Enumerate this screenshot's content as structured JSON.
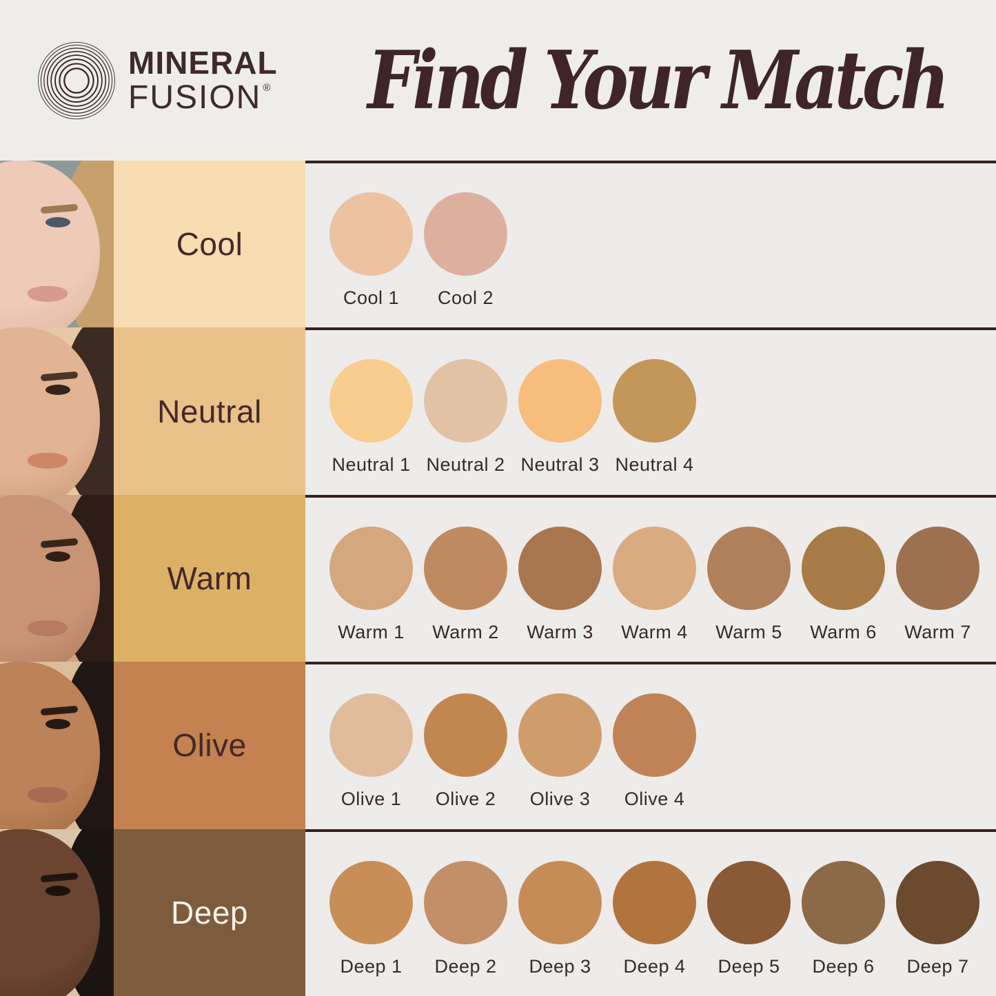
{
  "header": {
    "brand": {
      "line1": "MINERAL",
      "line2": "FUSION",
      "registered": "®"
    },
    "title": "Find Your Match"
  },
  "colors": {
    "page_bg": "#efedeb",
    "panel_bg": "#edecea",
    "divider": "#35221b",
    "title_text": "#3f2528",
    "brand_text": "#3e2a28",
    "swatch_label_text": "#372a24"
  },
  "rows": [
    {
      "id": "cool",
      "label": "Cool",
      "label_bg": "#f7ddb1",
      "label_color": "#43282a",
      "face": {
        "bg": "#8f989b",
        "skin1": "#eecab8",
        "skin2": "#d8a795",
        "hair": "#c7a06b",
        "brow": "#9b7b55",
        "eye": "#4a5a66",
        "lips": "#d89a8e"
      },
      "swatches": [
        {
          "name": "Cool 1",
          "color": "#ecc2a0"
        },
        {
          "name": "Cool 2",
          "color": "#dcb09c"
        }
      ]
    },
    {
      "id": "neutral",
      "label": "Neutral",
      "label_bg": "#eac189",
      "label_color": "#43282a",
      "face": {
        "bg": "#e5c9a2",
        "skin1": "#e2b394",
        "skin2": "#c08a6c",
        "hair": "#3b2b22",
        "brow": "#4a3527",
        "eye": "#33241c",
        "lips": "#cf8668"
      },
      "swatches": [
        {
          "name": "Neutral 1",
          "color": "#f8cd8d"
        },
        {
          "name": "Neutral 2",
          "color": "#e2c2a4"
        },
        {
          "name": "Neutral 3",
          "color": "#f6bd7c"
        },
        {
          "name": "Neutral 4",
          "color": "#c39659"
        }
      ]
    },
    {
      "id": "warm",
      "label": "Warm",
      "label_bg": "#dcb166",
      "label_color": "#43282a",
      "face": {
        "bg": "#d2a487",
        "skin1": "#c99475",
        "skin2": "#a1704f",
        "hair": "#2c1e16",
        "brow": "#3a271c",
        "eye": "#2e1f18",
        "lips": "#b97a64"
      },
      "swatches": [
        {
          "name": "Warm 1",
          "color": "#d4a77e"
        },
        {
          "name": "Warm 2",
          "color": "#c08a60"
        },
        {
          "name": "Warm 3",
          "color": "#a87750"
        },
        {
          "name": "Warm 4",
          "color": "#d8ab80"
        },
        {
          "name": "Warm 5",
          "color": "#b0805a"
        },
        {
          "name": "Warm 6",
          "color": "#a87b47"
        },
        {
          "name": "Warm 7",
          "color": "#9d7150"
        }
      ]
    },
    {
      "id": "olive",
      "label": "Olive",
      "label_bg": "#c3824f",
      "label_color": "#43282a",
      "face": {
        "bg": "#dcbd9b",
        "skin1": "#bd8257",
        "skin2": "#96613c",
        "hair": "#201714",
        "brow": "#2b1d16",
        "eye": "#241812",
        "lips": "#a96a52"
      },
      "swatches": [
        {
          "name": "Olive 1",
          "color": "#e0bc9c"
        },
        {
          "name": "Olive 2",
          "color": "#c2874f"
        },
        {
          "name": "Olive 3",
          "color": "#cf9d6c"
        },
        {
          "name": "Olive 4",
          "color": "#bf8355"
        }
      ]
    },
    {
      "id": "deep",
      "label": "Deep",
      "label_bg": "#7d5c3e",
      "label_color": "#f7f2ea",
      "face": {
        "bg": "#d9c6a8",
        "skin1": "#6b4530",
        "skin2": "#472b1d",
        "hair": "#1b1512",
        "brow": "#201511",
        "eye": "#1c120d",
        "lips": "#6e4434"
      },
      "swatches": [
        {
          "name": "Deep 1",
          "color": "#c98e57"
        },
        {
          "name": "Deep 2",
          "color": "#c28f68"
        },
        {
          "name": "Deep 3",
          "color": "#c68c58"
        },
        {
          "name": "Deep 4",
          "color": "#b1743f"
        },
        {
          "name": "Deep 5",
          "color": "#8a5a36"
        },
        {
          "name": "Deep 6",
          "color": "#8c6a48"
        },
        {
          "name": "Deep 7",
          "color": "#6c4a2e"
        }
      ]
    }
  ],
  "chart_data": {
    "type": "table",
    "title": "Find Your Match",
    "categories": [
      "Cool",
      "Neutral",
      "Warm",
      "Olive",
      "Deep"
    ],
    "series": [
      {
        "name": "Cool",
        "shades": [
          "Cool 1",
          "Cool 2"
        ],
        "hex": [
          "#ecc2a0",
          "#dcb09c"
        ]
      },
      {
        "name": "Neutral",
        "shades": [
          "Neutral 1",
          "Neutral 2",
          "Neutral 3",
          "Neutral 4"
        ],
        "hex": [
          "#f8cd8d",
          "#e2c2a4",
          "#f6bd7c",
          "#c39659"
        ]
      },
      {
        "name": "Warm",
        "shades": [
          "Warm 1",
          "Warm 2",
          "Warm 3",
          "Warm 4",
          "Warm 5",
          "Warm 6",
          "Warm 7"
        ],
        "hex": [
          "#d4a77e",
          "#c08a60",
          "#a87750",
          "#d8ab80",
          "#b0805a",
          "#a87b47",
          "#9d7150"
        ]
      },
      {
        "name": "Olive",
        "shades": [
          "Olive 1",
          "Olive 2",
          "Olive 3",
          "Olive 4"
        ],
        "hex": [
          "#e0bc9c",
          "#c2874f",
          "#cf9d6c",
          "#bf8355"
        ]
      },
      {
        "name": "Deep",
        "shades": [
          "Deep 1",
          "Deep 2",
          "Deep 3",
          "Deep 4",
          "Deep 5",
          "Deep 6",
          "Deep 7"
        ],
        "hex": [
          "#c98e57",
          "#c28f68",
          "#c68c58",
          "#b1743f",
          "#8a5a36",
          "#8c6a48",
          "#6c4a2e"
        ]
      }
    ]
  }
}
